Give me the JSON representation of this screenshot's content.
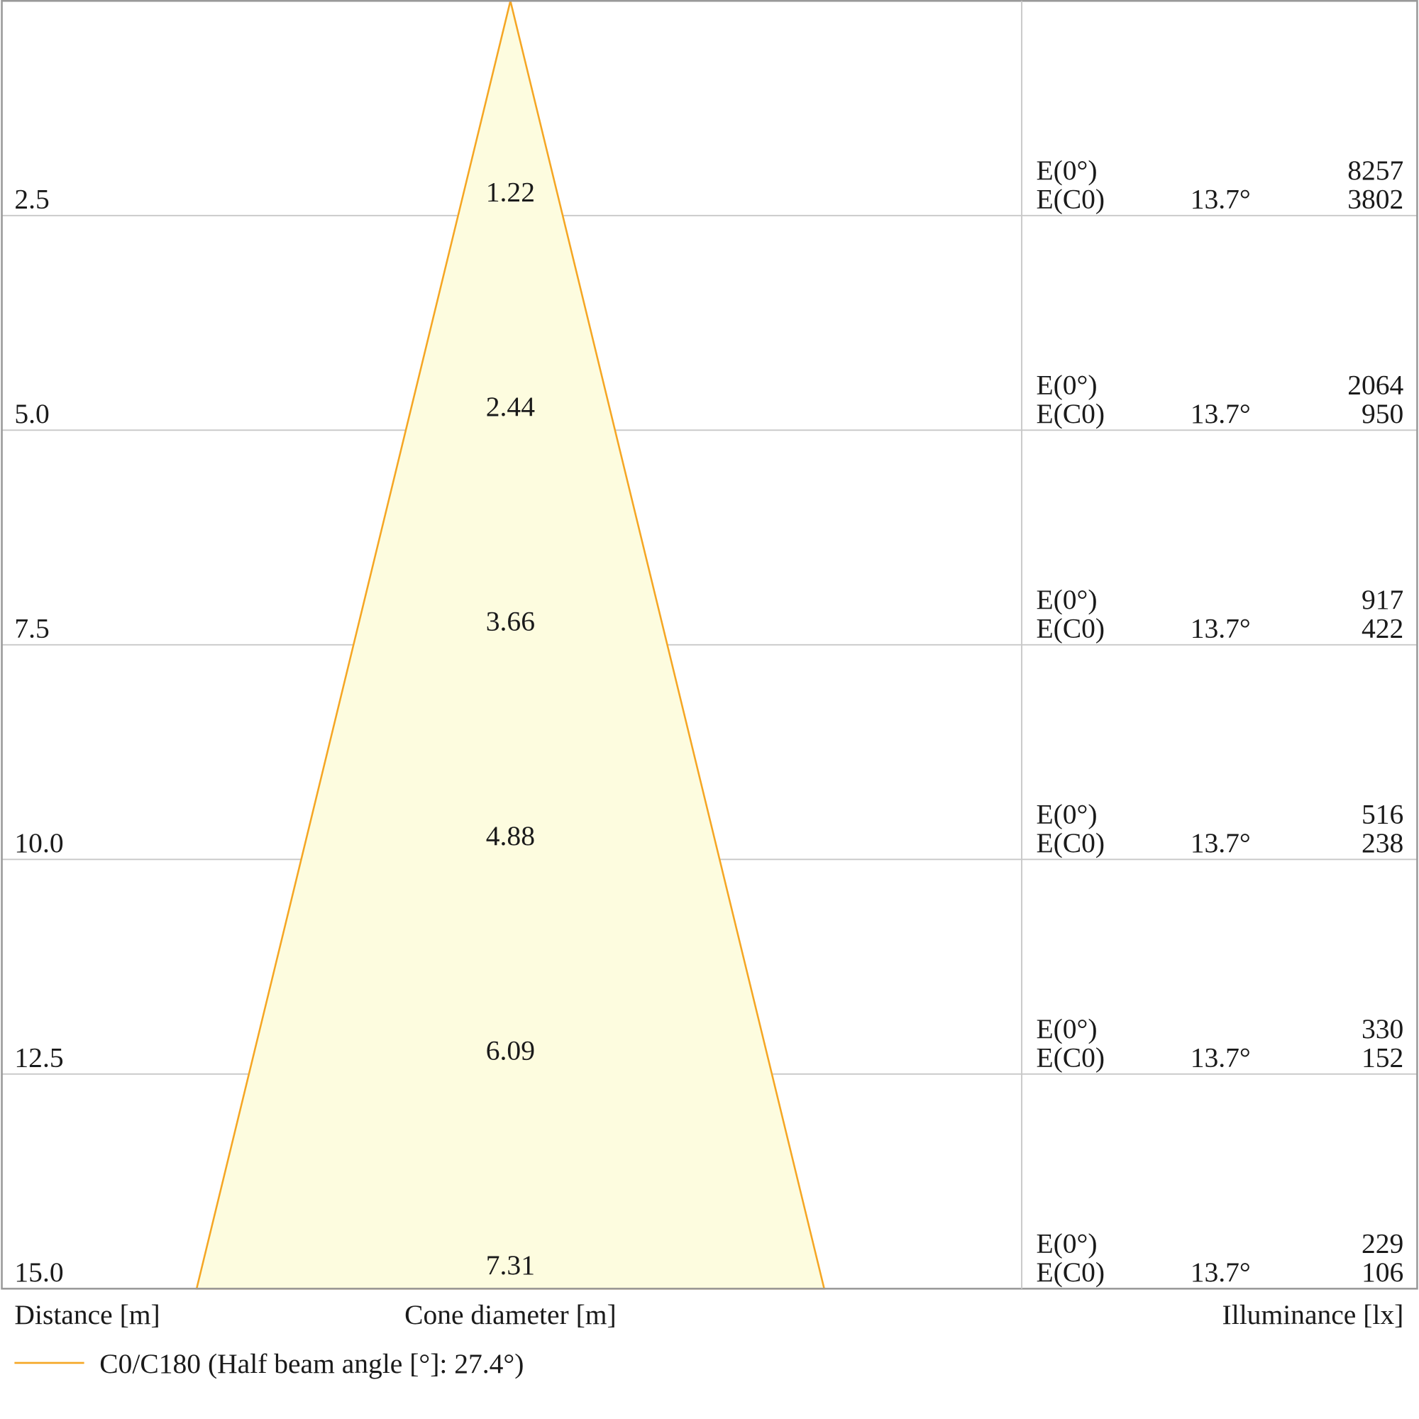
{
  "chart_data": {
    "type": "cone-diagram",
    "title": "",
    "curve_color": "#F5A623",
    "fill_color": "#FDFCDF",
    "grid_color": "#c8c8c8",
    "frame_color": "#999999",
    "rows": [
      {
        "distance": "2.5",
        "diameter": "1.22",
        "e0_label": "E(0°)",
        "e0_value": "8257",
        "ec0_label": "E(C0)",
        "angle": "13.7°",
        "ec0_value": "3802"
      },
      {
        "distance": "5.0",
        "diameter": "2.44",
        "e0_label": "E(0°)",
        "e0_value": "2064",
        "ec0_label": "E(C0)",
        "angle": "13.7°",
        "ec0_value": "950"
      },
      {
        "distance": "7.5",
        "diameter": "3.66",
        "e0_label": "E(0°)",
        "e0_value": "917",
        "ec0_label": "E(C0)",
        "angle": "13.7°",
        "ec0_value": "422"
      },
      {
        "distance": "10.0",
        "diameter": "4.88",
        "e0_label": "E(0°)",
        "e0_value": "516",
        "ec0_label": "E(C0)",
        "angle": "13.7°",
        "ec0_value": "238"
      },
      {
        "distance": "12.5",
        "diameter": "6.09",
        "e0_label": "E(0°)",
        "e0_value": "330",
        "ec0_label": "E(C0)",
        "angle": "13.7°",
        "ec0_value": "152"
      },
      {
        "distance": "15.0",
        "diameter": "7.31",
        "e0_label": "E(0°)",
        "e0_value": "229",
        "ec0_label": "E(C0)",
        "angle": "13.7°",
        "ec0_value": "106"
      }
    ],
    "axis_labels": {
      "distance": "Distance [m]",
      "cone": "Cone diameter [m]",
      "illuminance": "Illuminance [lx]"
    },
    "legend": {
      "label": "C0/C180 (Half beam angle [°]: 27.4°)"
    }
  }
}
